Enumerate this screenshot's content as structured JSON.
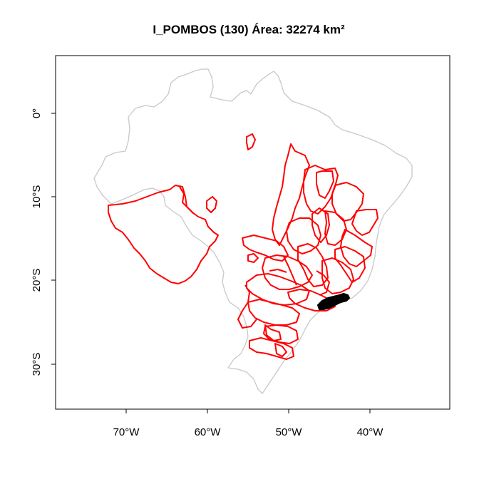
{
  "title": "I_POMBOS (130) Área: 32274 km²",
  "x_ticks": [
    "70°W",
    "60°W",
    "50°W",
    "40°W"
  ],
  "y_ticks": [
    "0°",
    "10°S",
    "20°S",
    "30°S"
  ],
  "colors": {
    "country_outline": "#c8c8c8",
    "basin_outlines": "#ff0000",
    "highlighted_basin": "#000000",
    "frame": "#000000"
  }
}
